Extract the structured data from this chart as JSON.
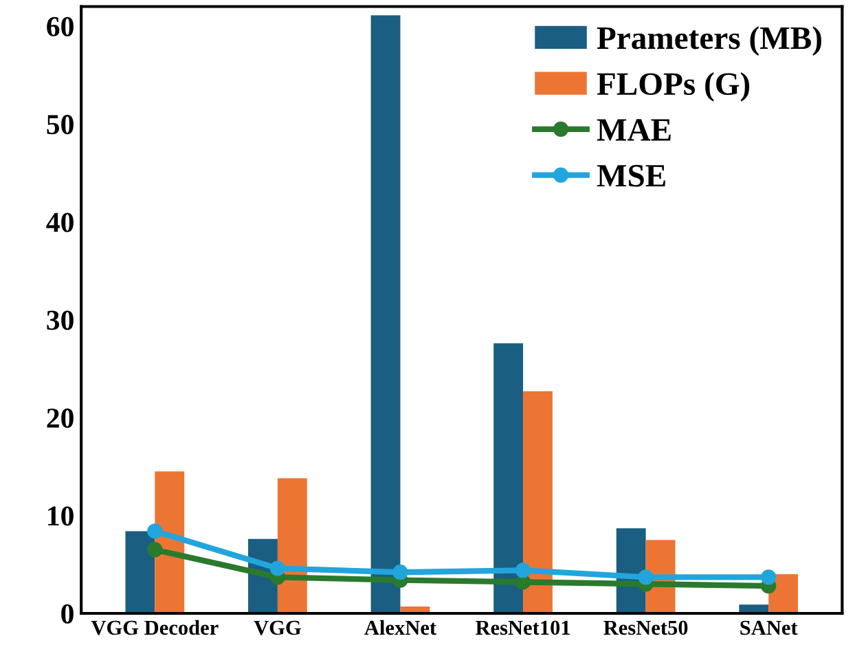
{
  "chart_data": {
    "type": "bar",
    "categories": [
      "VGG Decoder",
      "VGG",
      "AlexNet",
      "ResNet101",
      "ResNet50",
      "SANet"
    ],
    "series": [
      {
        "name": "Prameters (MB)",
        "color": "#1a5e82",
        "values": [
          8.4,
          7.6,
          61.1,
          27.6,
          8.7,
          0.9
        ]
      },
      {
        "name": "FLOPs (G)",
        "color": "#ed7534",
        "values": [
          14.5,
          13.8,
          0.7,
          22.7,
          7.5,
          4.0
        ]
      },
      {
        "name": "MAE",
        "type": "line",
        "color": "#2a7a2e",
        "values": [
          6.5,
          3.7,
          3.4,
          3.2,
          3.0,
          2.8
        ]
      },
      {
        "name": "MSE",
        "type": "line",
        "color": "#22a5dc",
        "values": [
          8.4,
          4.6,
          4.2,
          4.4,
          3.7,
          3.7
        ]
      }
    ],
    "ylim": [
      0,
      62
    ],
    "yticks": [
      0,
      10,
      20,
      30,
      40,
      50,
      60
    ],
    "legend": "top right",
    "marker": "circle",
    "grid": false
  }
}
